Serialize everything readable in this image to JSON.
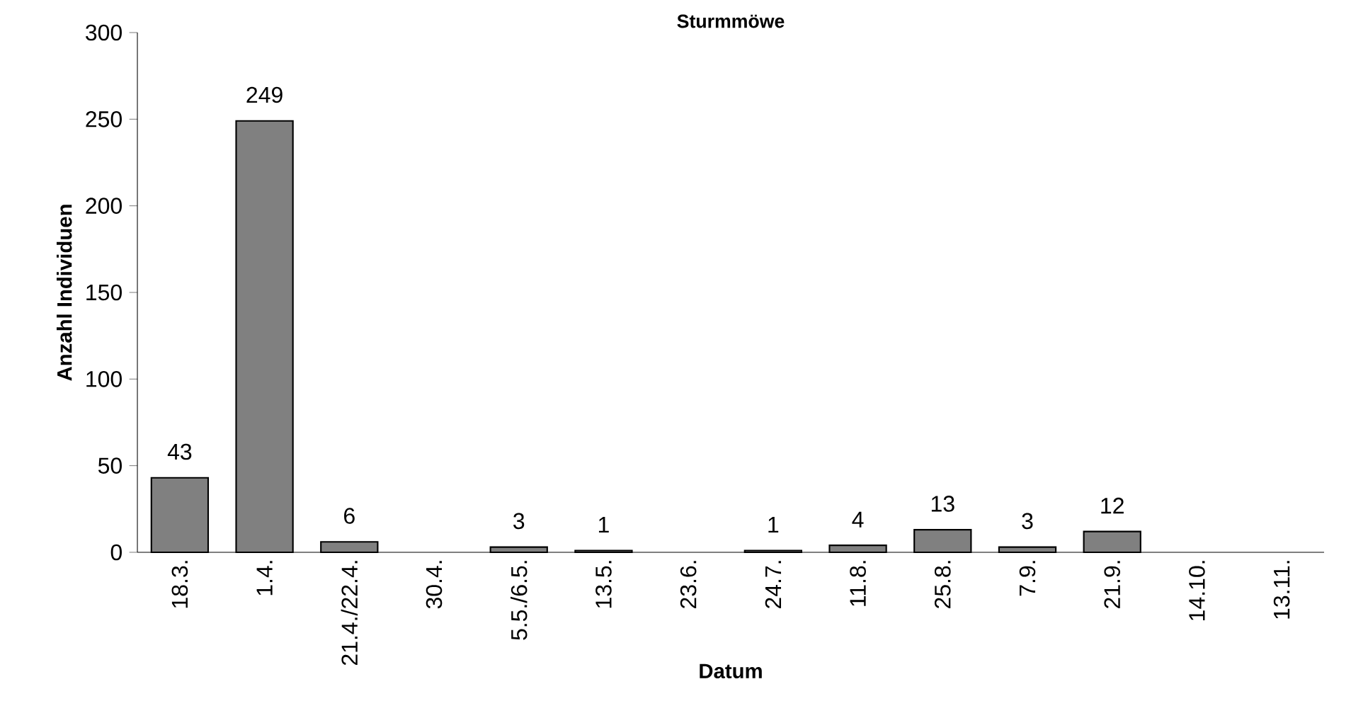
{
  "chart_data": {
    "type": "bar",
    "title": "Sturmmöwe",
    "xlabel": "Datum",
    "ylabel": "Anzahl Individuen",
    "categories": [
      "18.3.",
      "1.4.",
      "21.4./22.4.",
      "30.4.",
      "5.5./6.5.",
      "13.5.",
      "23.6.",
      "24.7.",
      "11.8.",
      "25.8.",
      "7.9.",
      "21.9.",
      "14.10.",
      "13.11."
    ],
    "values": [
      43,
      249,
      6,
      null,
      3,
      1,
      null,
      1,
      4,
      13,
      3,
      12,
      null,
      null
    ],
    "color": "#808080",
    "ylim": [
      0,
      300
    ],
    "yticks": [
      0,
      50,
      100,
      150,
      200,
      250,
      300
    ],
    "data_labels": true
  }
}
